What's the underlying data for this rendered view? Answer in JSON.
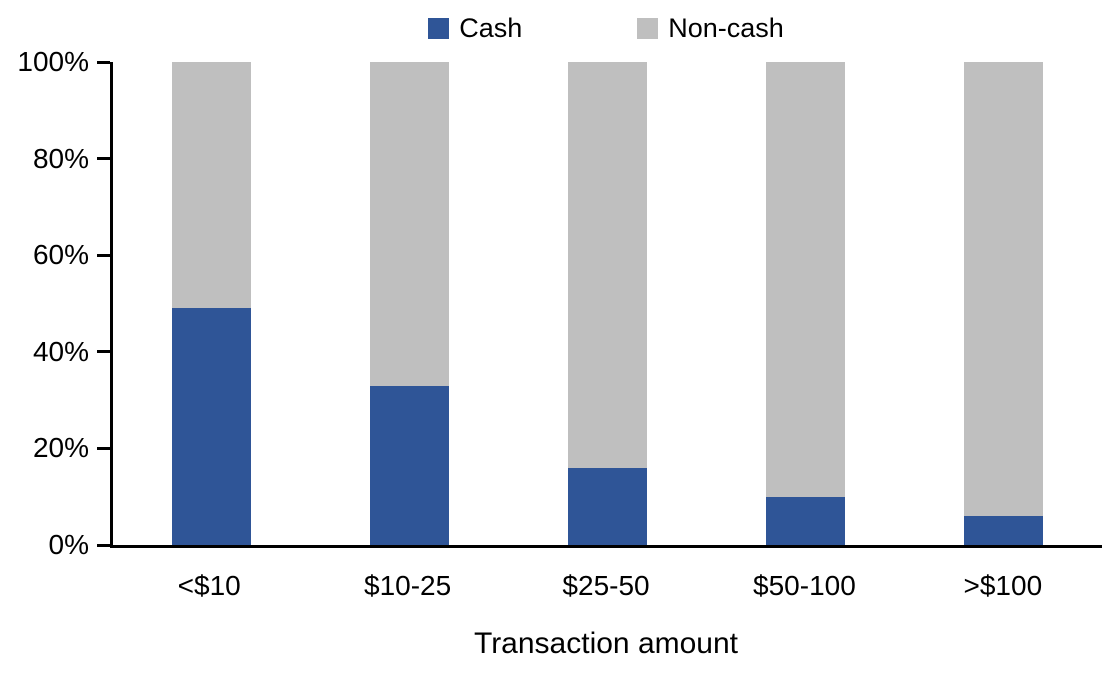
{
  "chart_data": {
    "type": "bar",
    "stacked": true,
    "percent_stacked": true,
    "title": "",
    "xlabel": "Transaction amount",
    "ylabel": "",
    "categories": [
      "<$10",
      "$10-25",
      "$25-50",
      "$50-100",
      ">$100"
    ],
    "series": [
      {
        "name": "Cash",
        "color": "#2F5597",
        "values": [
          49,
          33,
          16,
          10,
          6
        ]
      },
      {
        "name": "Non-cash",
        "color": "#BFBFBF",
        "values": [
          51,
          67,
          84,
          90,
          94
        ]
      }
    ],
    "ylim": [
      0,
      100
    ],
    "y_ticks": [
      "0%",
      "20%",
      "40%",
      "60%",
      "80%",
      "100%"
    ],
    "grid": false,
    "legend_position": "top",
    "axis_color": "#000000",
    "text_color": "#000000",
    "background_color": "#FFFFFF"
  }
}
